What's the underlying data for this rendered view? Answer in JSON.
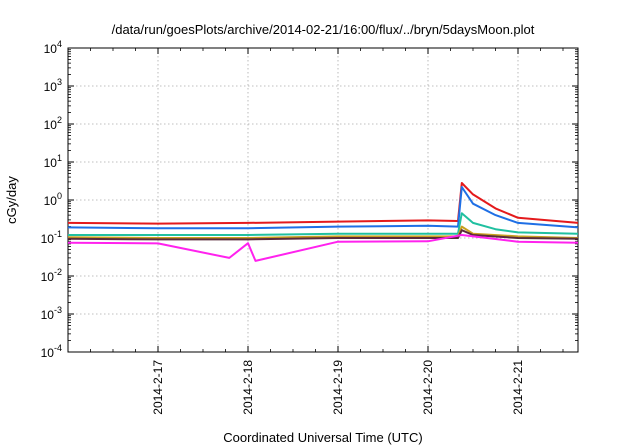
{
  "chart_data": {
    "type": "line",
    "title": "/data/run/goesPlots/archive/2014-02-21/16:00/flux/../bryn/5daysMoon.plot",
    "xlabel": "Coordinated Universal Time (UTC)",
    "ylabel": "cGy/day",
    "x_axis": {
      "unit": "days",
      "range": [
        "2014-02-16 00:00",
        "2014-02-21 16:00"
      ],
      "ticks": [
        "2014-2-17",
        "2014-2-18",
        "2014-2-19",
        "2014-2-20",
        "2014-2-21"
      ]
    },
    "y_axis": {
      "scale": "log",
      "range": [
        0.0001,
        10000
      ],
      "tick_exponents": [
        -4,
        -3,
        -2,
        -1,
        0,
        1,
        2,
        3,
        4
      ]
    },
    "grid": true,
    "legend": "none",
    "series": [
      {
        "color": "#e41a1c",
        "points": [
          [
            "2014-02-16 00:00",
            0.25
          ],
          [
            "2014-02-17 00:00",
            0.24
          ],
          [
            "2014-02-18 00:00",
            0.25
          ],
          [
            "2014-02-19 00:00",
            0.27
          ],
          [
            "2014-02-20 00:00",
            0.29
          ],
          [
            "2014-02-20 08:00",
            0.28
          ],
          [
            "2014-02-20 09:00",
            2.8
          ],
          [
            "2014-02-20 12:00",
            1.4
          ],
          [
            "2014-02-20 18:00",
            0.6
          ],
          [
            "2014-02-21 00:00",
            0.34
          ],
          [
            "2014-02-21 16:00",
            0.25
          ]
        ]
      },
      {
        "color": "#1f6fe5",
        "points": [
          [
            "2014-02-16 00:00",
            0.19
          ],
          [
            "2014-02-17 00:00",
            0.18
          ],
          [
            "2014-02-18 00:00",
            0.18
          ],
          [
            "2014-02-19 00:00",
            0.2
          ],
          [
            "2014-02-20 00:00",
            0.21
          ],
          [
            "2014-02-20 08:00",
            0.2
          ],
          [
            "2014-02-20 09:00",
            2.2
          ],
          [
            "2014-02-20 12:00",
            0.8
          ],
          [
            "2014-02-20 18:00",
            0.4
          ],
          [
            "2014-02-21 00:00",
            0.25
          ],
          [
            "2014-02-21 16:00",
            0.19
          ]
        ]
      },
      {
        "color": "#20c0a0",
        "points": [
          [
            "2014-02-16 00:00",
            0.12
          ],
          [
            "2014-02-17 00:00",
            0.12
          ],
          [
            "2014-02-18 00:00",
            0.12
          ],
          [
            "2014-02-19 00:00",
            0.13
          ],
          [
            "2014-02-20 00:00",
            0.13
          ],
          [
            "2014-02-20 08:00",
            0.13
          ],
          [
            "2014-02-20 09:00",
            0.45
          ],
          [
            "2014-02-20 12:00",
            0.25
          ],
          [
            "2014-02-20 18:00",
            0.17
          ],
          [
            "2014-02-21 00:00",
            0.14
          ],
          [
            "2014-02-21 16:00",
            0.13
          ]
        ]
      },
      {
        "color": "#c8a020",
        "points": [
          [
            "2014-02-16 00:00",
            0.105
          ],
          [
            "2014-02-17 00:00",
            0.1
          ],
          [
            "2014-02-18 00:00",
            0.1
          ],
          [
            "2014-02-19 00:00",
            0.11
          ],
          [
            "2014-02-20 00:00",
            0.11
          ],
          [
            "2014-02-20 08:00",
            0.11
          ],
          [
            "2014-02-20 09:00",
            0.2
          ],
          [
            "2014-02-20 12:00",
            0.13
          ],
          [
            "2014-02-21 00:00",
            0.11
          ],
          [
            "2014-02-21 16:00",
            0.1
          ]
        ]
      },
      {
        "color": "#5a2a3a",
        "points": [
          [
            "2014-02-16 00:00",
            0.095
          ],
          [
            "2014-02-17 00:00",
            0.092
          ],
          [
            "2014-02-18 00:00",
            0.092
          ],
          [
            "2014-02-19 00:00",
            0.1
          ],
          [
            "2014-02-20 00:00",
            0.1
          ],
          [
            "2014-02-20 08:00",
            0.1
          ],
          [
            "2014-02-20 09:00",
            0.16
          ],
          [
            "2014-02-20 12:00",
            0.12
          ],
          [
            "2014-02-21 00:00",
            0.1
          ],
          [
            "2014-02-21 16:00",
            0.095
          ]
        ]
      },
      {
        "color": "#ff22ee",
        "points": [
          [
            "2014-02-16 00:00",
            0.075
          ],
          [
            "2014-02-17 00:00",
            0.072
          ],
          [
            "2014-02-17 19:00",
            0.03
          ],
          [
            "2014-02-18 00:00",
            0.073
          ],
          [
            "2014-02-18 02:00",
            0.025
          ],
          [
            "2014-02-19 00:00",
            0.08
          ],
          [
            "2014-02-20 00:00",
            0.082
          ],
          [
            "2014-02-20 09:00",
            0.12
          ],
          [
            "2014-02-21 00:00",
            0.08
          ],
          [
            "2014-02-21 16:00",
            0.075
          ]
        ]
      }
    ]
  }
}
